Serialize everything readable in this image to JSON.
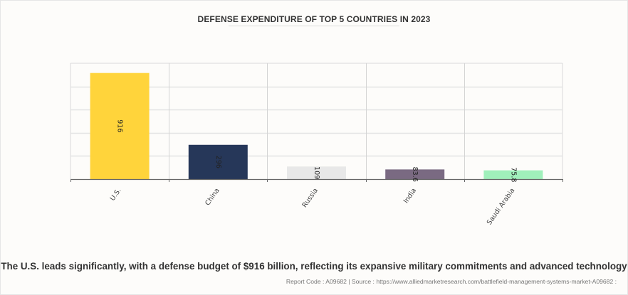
{
  "chart_data": {
    "type": "bar",
    "title": "DEFENSE EXPENDITURE OF TOP 5 COUNTRIES IN 2023",
    "categories": [
      "U.S.",
      "China",
      "Russia",
      "India",
      "Saudi Arabia"
    ],
    "values": [
      916,
      296,
      109,
      83.6,
      75.8
    ],
    "data_labels": [
      "916",
      "296",
      "109",
      "83.6",
      "75.8"
    ],
    "colors": [
      "#ffd43b",
      "#263759",
      "#e8e8e8",
      "#7a6a82",
      "#a0f0bb"
    ],
    "xlabel": "",
    "ylabel": "",
    "ylim": [
      0,
      1000
    ],
    "y_gridlines": [
      200,
      400,
      600,
      800
    ],
    "y_tick_labels_visible": false,
    "grid": true,
    "legend": "none"
  },
  "caption": "The U.S. leads significantly, with a defense budget of $916 billion, reflecting its expansive military commitments and advanced technology",
  "source_line": "Report Code : A09682  |  Source : https://www.alliedmarketresearch.com/battlefield-management-systems-market-A09682 :"
}
